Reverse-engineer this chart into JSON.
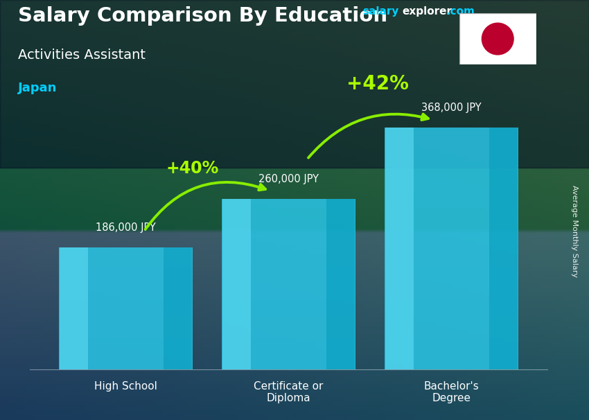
{
  "title_main": "Salary Comparison By Education",
  "title_sub": "Activities Assistant",
  "country": "Japan",
  "ylabel": "Average Monthly Salary",
  "categories": [
    "High School",
    "Certificate or\nDiploma",
    "Bachelor's\nDegree"
  ],
  "values": [
    186000,
    260000,
    368000
  ],
  "value_labels": [
    "186,000 JPY",
    "260,000 JPY",
    "368,000 JPY"
  ],
  "pct_labels": [
    "+40%",
    "+42%"
  ],
  "bar_color_face": "#29c5e6",
  "bar_color_light": "#60ddf5",
  "bar_color_dark": "#0099bb",
  "arrow_color": "#88ee00",
  "pct_color": "#aaff00",
  "country_color": "#00cfff",
  "watermark_salary": "#00cfff",
  "bg_top": "#1a3a5c",
  "bg_mid": "#1e4a3a",
  "bg_bot": "#0a3a2a",
  "bar_alpha": 0.85,
  "ylim": [
    0,
    460000
  ],
  "x_positions": [
    1.3,
    3.5,
    5.7
  ],
  "bar_width": 0.9
}
